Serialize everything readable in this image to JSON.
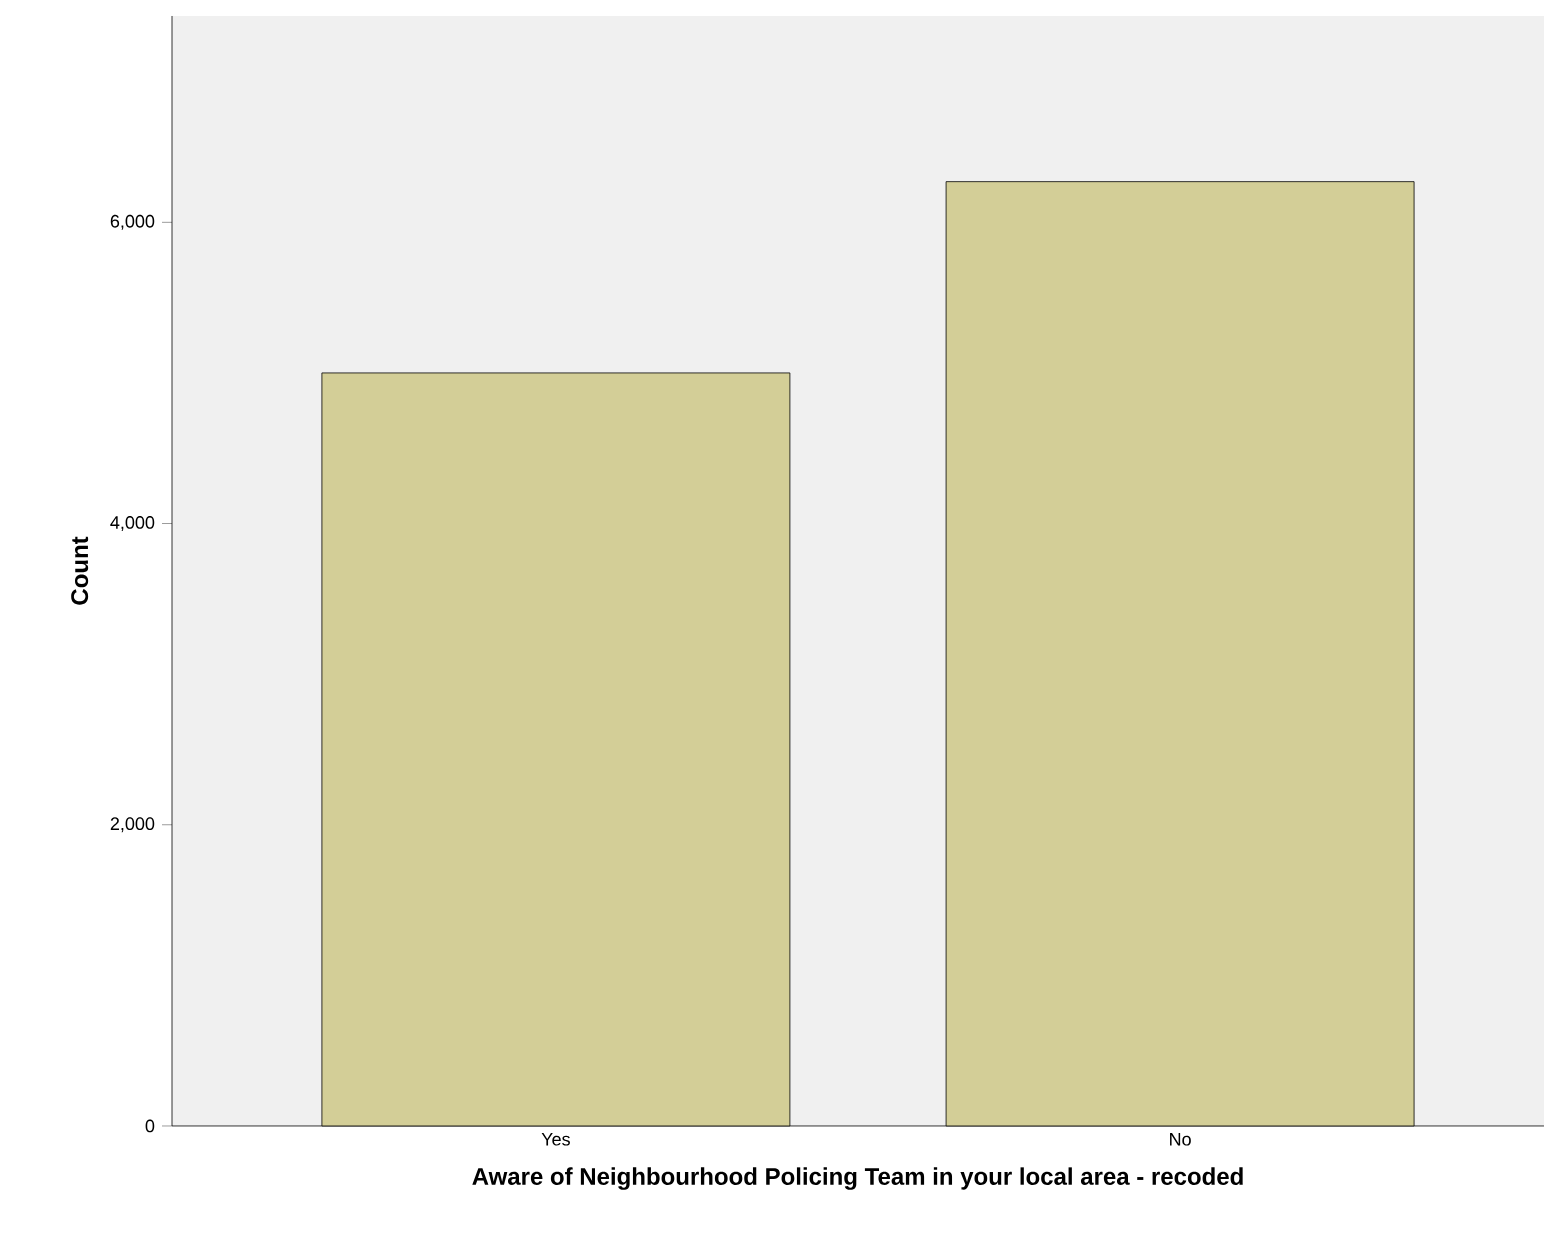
{
  "chart_data": {
    "type": "bar",
    "xlabel": "Aware of Neighbourhood Policing Team in your local area - recoded",
    "ylabel": "Count",
    "categories": [
      "Yes",
      "No"
    ],
    "values": [
      5000,
      6270
    ],
    "color": "#d3ce97",
    "ylim": [
      0,
      7370
    ],
    "yticks": [
      {
        "value": 0,
        "label": "0"
      },
      {
        "value": 2000,
        "label": "2,000"
      },
      {
        "value": 4000,
        "label": "4,000"
      },
      {
        "value": 6000,
        "label": "6,000"
      }
    ],
    "grid": false
  }
}
